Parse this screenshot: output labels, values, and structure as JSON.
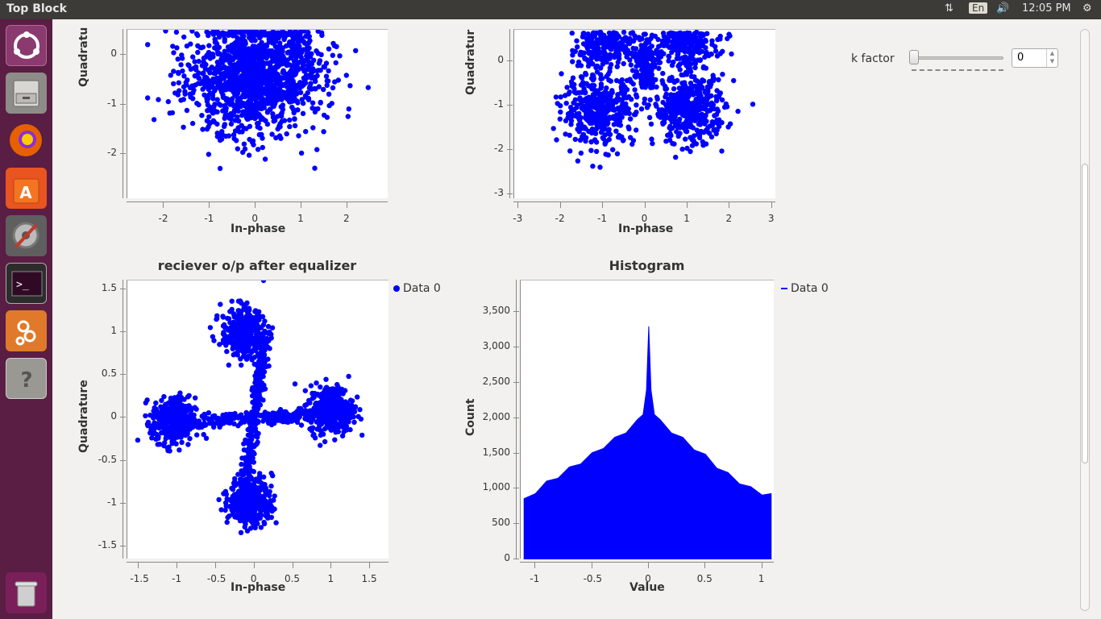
{
  "window": {
    "title": "Top Block"
  },
  "tray": {
    "keyboard": "En",
    "time": "12:05 PM",
    "icons": [
      "network-arrows-icon",
      "volume-icon",
      "power-gear-icon"
    ]
  },
  "launcher": {
    "items": [
      {
        "name": "ubuntu-dash-icon",
        "color": "#8a3a6e"
      },
      {
        "name": "files-icon",
        "color": "#8e8c88"
      },
      {
        "name": "firefox-icon",
        "color": "#e66000"
      },
      {
        "name": "software-center-icon",
        "color": "#e95420"
      },
      {
        "name": "system-settings-icon",
        "color": "#6d6d6d"
      },
      {
        "name": "terminal-icon",
        "color": "#2c2c2c"
      },
      {
        "name": "gnuradio-icon",
        "color": "#e07a2a"
      },
      {
        "name": "help-icon",
        "color": "#9a9893"
      },
      {
        "name": "trash-icon",
        "color": "#7a1f5a"
      }
    ]
  },
  "controls": {
    "k_factor_label": "k factor",
    "k_factor_value": "0",
    "k_factor_slider_position": 0
  },
  "colors": {
    "data": "#0000ff",
    "axis": "#888888"
  },
  "chart_data": [
    {
      "type": "scatter",
      "title": "",
      "xlabel": "In-phase",
      "ylabel": "Quadratu",
      "x_ticks": [
        "-2",
        "-1",
        "0",
        "1",
        "2"
      ],
      "y_ticks": [
        "0",
        "-1",
        "-2"
      ],
      "xlim": [
        -2.8,
        2.9
      ],
      "ylim": [
        -2.9,
        0.5
      ],
      "description_points": "dense blob of points spanning x -2.5..2.5, y -2.3..0.5"
    },
    {
      "type": "scatter",
      "title": "",
      "xlabel": "In-phase",
      "ylabel": "Quadratur",
      "x_ticks": [
        "-3",
        "-2",
        "-1",
        "0",
        "1",
        "2",
        "3"
      ],
      "y_ticks": [
        "0",
        "-1",
        "-2",
        "-3"
      ],
      "xlim": [
        -3.1,
        3.1
      ],
      "ylim": [
        -3.1,
        0.7
      ]
    },
    {
      "type": "scatter",
      "title": "reciever o/p after equalizer",
      "xlabel": "In-phase",
      "ylabel": "Quadrature",
      "legend": [
        "Data 0"
      ],
      "x_ticks": [
        "-1.5",
        "-1",
        "-0.5",
        "0",
        "0.5",
        "1",
        "1.5"
      ],
      "y_ticks": [
        "1.5",
        "1",
        "0.5",
        "0",
        "-0.5",
        "-1",
        "-1.5"
      ],
      "xlim": [
        -1.65,
        1.75
      ],
      "ylim": [
        -1.65,
        1.6
      ]
    },
    {
      "type": "area",
      "title": "Histogram",
      "xlabel": "Value",
      "ylabel": "Count",
      "legend": [
        "Data 0"
      ],
      "x_ticks": [
        "-1",
        "-0.5",
        "0",
        "0.5",
        "1"
      ],
      "y_ticks": [
        "3,500",
        "3,000",
        "2,500",
        "2,000",
        "1,500",
        "1,000",
        "500",
        "0"
      ],
      "xlim": [
        -1.13,
        1.11
      ],
      "ylim": [
        0,
        3950
      ],
      "x": [
        -1.1,
        -1.0,
        -0.9,
        -0.8,
        -0.7,
        -0.6,
        -0.5,
        -0.4,
        -0.3,
        -0.2,
        -0.1,
        -0.05,
        -0.02,
        0,
        0.02,
        0.05,
        0.1,
        0.2,
        0.3,
        0.4,
        0.5,
        0.6,
        0.7,
        0.8,
        0.9,
        1.0,
        1.08
      ],
      "values": [
        830,
        960,
        1080,
        1180,
        1280,
        1380,
        1480,
        1600,
        1700,
        1820,
        1950,
        2050,
        2400,
        3300,
        2400,
        2050,
        1950,
        1820,
        1700,
        1580,
        1460,
        1320,
        1200,
        1100,
        1000,
        940,
        900
      ]
    }
  ]
}
